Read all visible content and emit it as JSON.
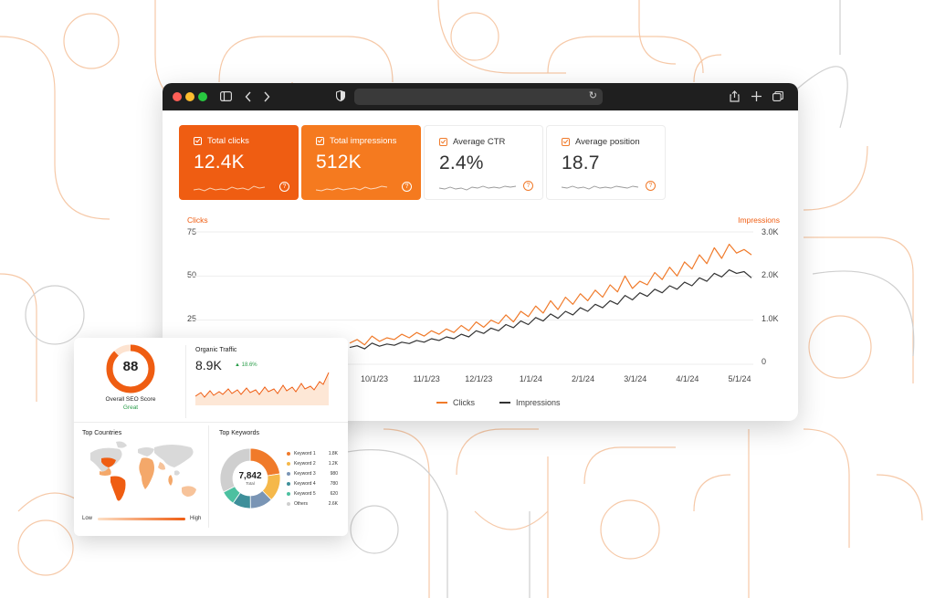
{
  "colors": {
    "accent": "#ef5d12",
    "accent_light": "#f57a1f",
    "impressions": "#333333",
    "positive": "#2a9d4a"
  },
  "browser": {
    "toolbar_icons": [
      "sidebar-icon",
      "back-icon",
      "forward-icon",
      "shield-icon",
      "reload-icon",
      "share-icon",
      "new-tab-icon",
      "tabs-icon"
    ]
  },
  "metrics": [
    {
      "label": "Total clicks",
      "value": "12.4K",
      "active": true
    },
    {
      "label": "Total impressions",
      "value": "512K",
      "active": true
    },
    {
      "label": "Average CTR",
      "value": "2.4%",
      "active": false
    },
    {
      "label": "Average position",
      "value": "18.7",
      "active": false
    }
  ],
  "chart_data": {
    "type": "line",
    "left_axis_label": "Clicks",
    "right_axis_label": "Impressions",
    "x_tick_labels": [
      "10/1/23",
      "11/1/23",
      "12/1/23",
      "1/1/24",
      "2/1/24",
      "3/1/24",
      "4/1/24",
      "5/1/24"
    ],
    "y_left_ticks": [
      "75",
      "50",
      "25"
    ],
    "y_right_ticks": [
      "3.0K",
      "2.0K",
      "1.0K",
      "0"
    ],
    "ylim_left": [
      0,
      75
    ],
    "ylim_right": [
      0,
      3000
    ],
    "series": [
      {
        "name": "Clicks",
        "axis": "left",
        "color": "#f07a2a",
        "values": [
          12,
          14,
          11,
          16,
          13,
          15,
          14,
          17,
          15,
          18,
          16,
          19,
          17,
          20,
          18,
          22,
          19,
          24,
          21,
          25,
          23,
          28,
          24,
          30,
          27,
          33,
          29,
          36,
          31,
          38,
          34,
          40,
          36,
          42,
          38,
          45,
          41,
          50,
          43,
          47,
          45,
          52,
          48,
          55,
          50,
          58,
          54,
          62,
          57,
          66,
          60,
          68,
          63,
          65,
          62
        ]
      },
      {
        "name": "Impressions",
        "axis": "right",
        "color": "#333333",
        "values": [
          380,
          420,
          350,
          480,
          410,
          460,
          430,
          500,
          470,
          540,
          500,
          580,
          540,
          620,
          580,
          680,
          620,
          760,
          700,
          820,
          760,
          900,
          830,
          980,
          900,
          1060,
          980,
          1140,
          1040,
          1200,
          1120,
          1280,
          1200,
          1360,
          1280,
          1440,
          1360,
          1560,
          1460,
          1620,
          1540,
          1700,
          1620,
          1780,
          1700,
          1860,
          1780,
          1960,
          1880,
          2060,
          1980,
          2140,
          2060,
          2100,
          1960
        ]
      }
    ],
    "legend": [
      "Clicks",
      "Impressions"
    ],
    "legend_position": "bottom"
  },
  "seo": {
    "score": "88",
    "label": "Overall SEO Score",
    "status": "Great"
  },
  "traffic": {
    "title": "Organic Traffic",
    "value": "8.9K",
    "delta": "▲ 18.6%"
  },
  "countries": {
    "title": "Top Countries",
    "low": "Low",
    "high": "High"
  },
  "keywords": {
    "title": "Top Keywords",
    "total": "7,842",
    "total_label": "Total",
    "items": [
      {
        "name": "Keyword 1",
        "value": "1.8K",
        "color": "#f07a2a"
      },
      {
        "name": "Keyword 2",
        "value": "1.2K",
        "color": "#f5b84a"
      },
      {
        "name": "Keyword 3",
        "value": "980",
        "color": "#7a95b5"
      },
      {
        "name": "Keyword 4",
        "value": "780",
        "color": "#3e8f9a"
      },
      {
        "name": "Keyword 5",
        "value": "620",
        "color": "#4cc0a0"
      },
      {
        "name": "Others",
        "value": "2.6K",
        "color": "#cfcfcf"
      }
    ]
  }
}
